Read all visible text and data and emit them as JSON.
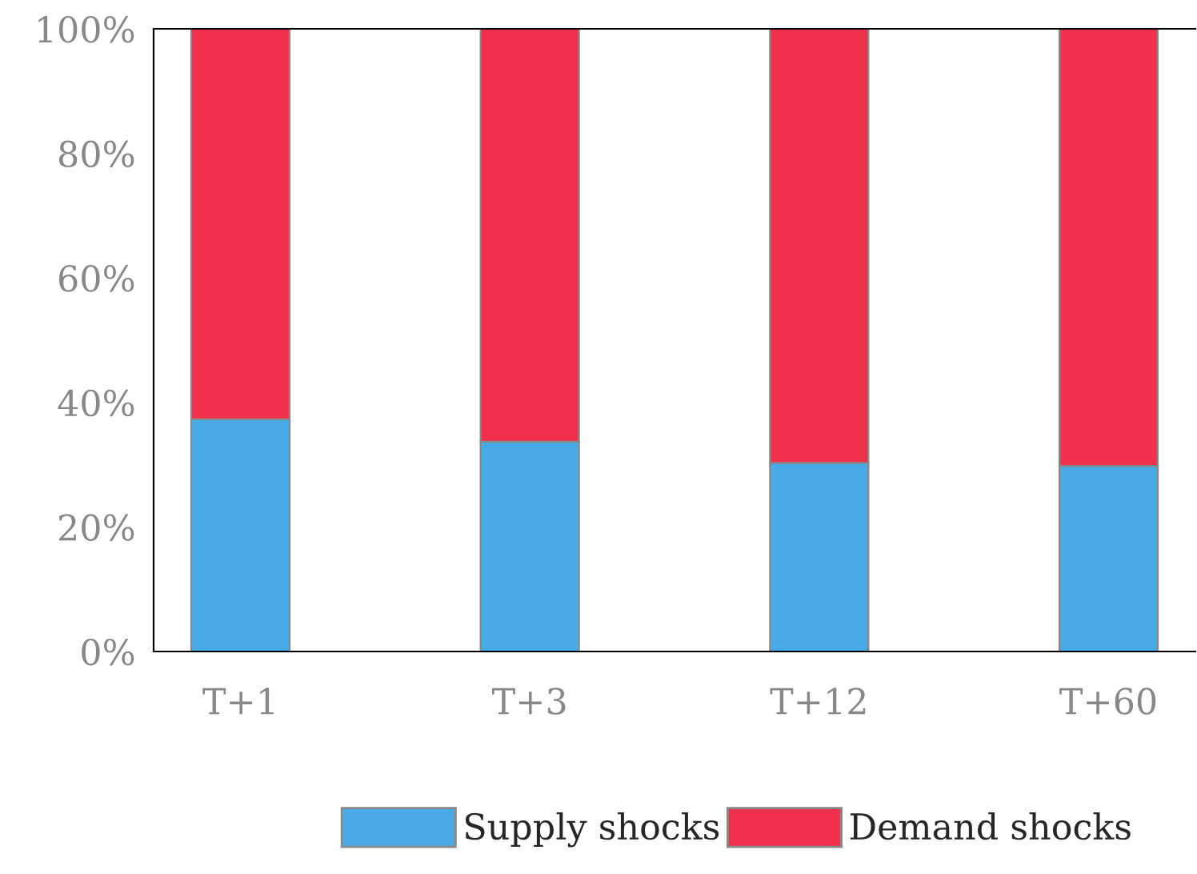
{
  "chart_data": {
    "type": "bar",
    "stacked": true,
    "categories": [
      "T+1",
      "T+3",
      "T+12",
      "T+60"
    ],
    "series": [
      {
        "name": "Supply shocks",
        "color": "#48aae6",
        "values": [
          37.3,
          33.7,
          30.3,
          29.8
        ]
      },
      {
        "name": "Demand shocks",
        "color": "#ef314e",
        "values": [
          62.7,
          66.3,
          69.7,
          70.2
        ]
      }
    ],
    "ylim": [
      0,
      100
    ],
    "yticks": [
      {
        "value": 0,
        "label": "0%"
      },
      {
        "value": 20,
        "label": "20%"
      },
      {
        "value": 40,
        "label": "40%"
      },
      {
        "value": 60,
        "label": "60%"
      },
      {
        "value": 80,
        "label": "80%"
      },
      {
        "value": 100,
        "label": "100%"
      }
    ],
    "legend": "bottom",
    "grid": false
  }
}
